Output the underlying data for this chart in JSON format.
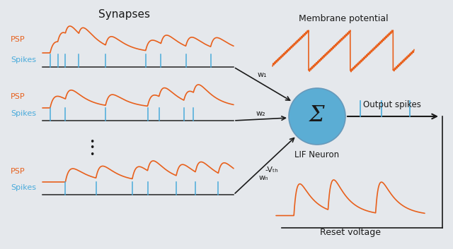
{
  "bg_color": "#e5e8ec",
  "orange_color": "#E8601C",
  "blue_color": "#4AABDB",
  "dark_color": "#1a1a1a",
  "neuron_color": "#5BADD4",
  "title": "Synapses",
  "membrane_label": "Membrane potential",
  "output_label": "Output spikes",
  "lif_label": "LIF Neuron",
  "reset_label": "Reset voltage",
  "psp_label": "PSP",
  "spikes_label": "Spikes",
  "w1_label": "w₁",
  "w2_label": "w₂",
  "wN_label": "wₙ",
  "vth_label": "-Vₜₕ",
  "sigma_label": "Σ",
  "figw": 6.4,
  "figh": 3.53,
  "dpi": 100
}
